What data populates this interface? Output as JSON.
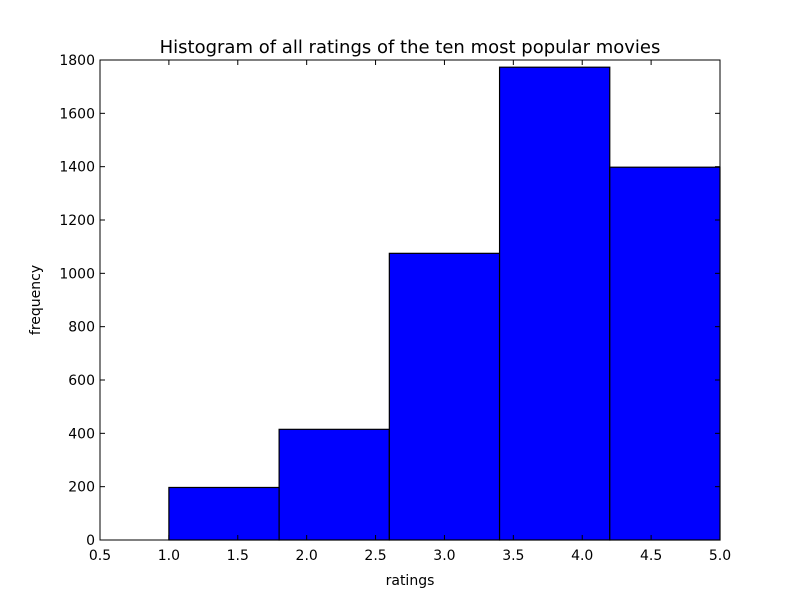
{
  "chart_data": {
    "type": "bar",
    "title": "Histogram of all ratings of the ten most popular movies",
    "xlabel": "ratings",
    "ylabel": "frequency",
    "xlim": [
      0.5,
      5.0
    ],
    "ylim": [
      0,
      1800
    ],
    "bins": [
      {
        "x0": 1.0,
        "x1": 1.8,
        "value": 197
      },
      {
        "x0": 1.8,
        "x1": 2.6,
        "value": 415
      },
      {
        "x0": 2.6,
        "x1": 3.4,
        "value": 1075
      },
      {
        "x0": 3.4,
        "x1": 4.2,
        "value": 1773
      },
      {
        "x0": 4.2,
        "x1": 5.0,
        "value": 1398
      }
    ],
    "x_ticks": [
      "0.5",
      "1.0",
      "1.5",
      "2.0",
      "2.5",
      "3.0",
      "3.5",
      "4.0",
      "4.5",
      "5.0"
    ],
    "y_ticks": [
      "0",
      "200",
      "400",
      "600",
      "800",
      "1000",
      "1200",
      "1400",
      "1600",
      "1800"
    ],
    "bar_color": "#0000ff",
    "edge_color": "#000000",
    "grid": false,
    "legend": "none"
  }
}
